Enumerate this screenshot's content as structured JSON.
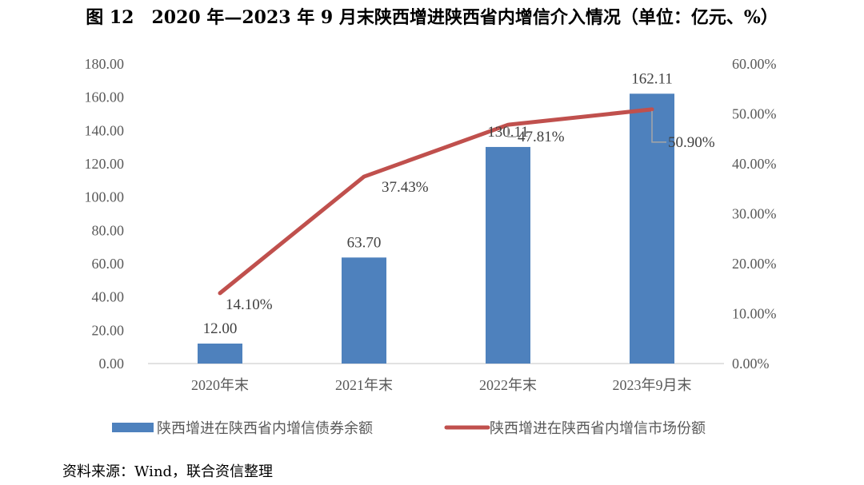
{
  "figure": {
    "title": "图 12　2020 年—2023 年 9 月末陕西增进陕西省内增信介入情况（单位：亿元、%）",
    "source": "资料来源：Wind，联合资信整理"
  },
  "chart_data": {
    "type": "bar",
    "categories": [
      "2020年末",
      "2021年末",
      "2022年末",
      "2023年9月末"
    ],
    "series": [
      {
        "name": "陕西增进在陕西省内增信债券余额",
        "type": "bar",
        "axis": "left",
        "values": [
          12.0,
          63.7,
          130.11,
          162.11
        ],
        "labels": [
          "12.00",
          "63.70",
          "130.11",
          "162.11"
        ]
      },
      {
        "name": "陕西增进在陕西省内增信市场份额",
        "type": "line",
        "axis": "right",
        "values": [
          14.1,
          37.43,
          47.81,
          50.9
        ],
        "labels": [
          "14.10%",
          "37.43%",
          "47.81%",
          "50.90%"
        ]
      }
    ],
    "y_left": {
      "range": [
        0,
        180
      ],
      "ticks": [
        "0.00",
        "20.00",
        "40.00",
        "60.00",
        "80.00",
        "100.00",
        "120.00",
        "140.00",
        "160.00",
        "180.00"
      ]
    },
    "y_right": {
      "range": [
        0,
        60
      ],
      "ticks": [
        "0.00%",
        "10.00%",
        "20.00%",
        "30.00%",
        "40.00%",
        "50.00%",
        "60.00%"
      ]
    },
    "legend_position": "bottom",
    "grid": false,
    "colors": {
      "bar": "#4e81bd",
      "line": "#c0504d",
      "axis": "#d9d9d9",
      "leader": "#a6a6a6"
    }
  }
}
